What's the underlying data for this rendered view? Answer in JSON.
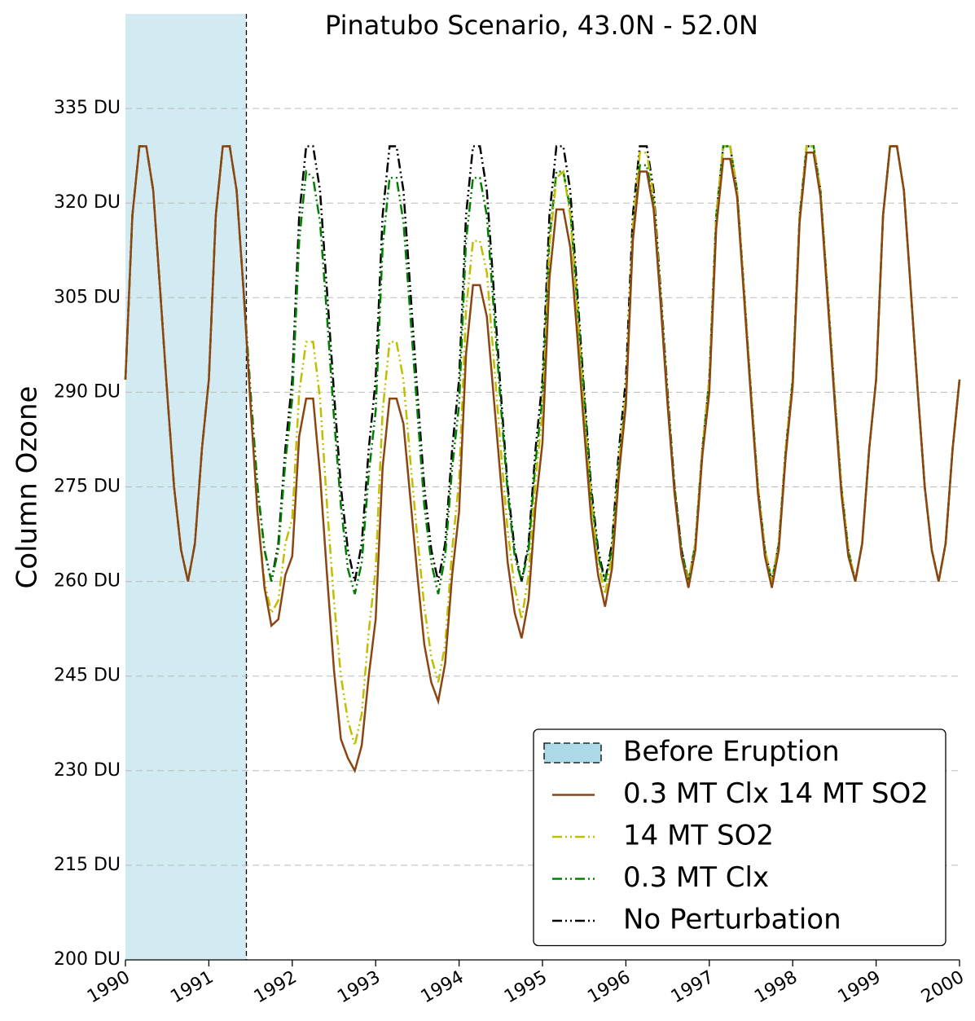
{
  "chart_data": {
    "type": "line",
    "title": "Pinatubo Scenario, 43.0N - 52.0N",
    "y_label": "Column Ozone",
    "x": [
      1990,
      1990.083,
      1990.167,
      1990.25,
      1990.333,
      1990.417,
      1990.5,
      1990.583,
      1990.667,
      1990.75,
      1990.833,
      1990.917,
      1991,
      1991.083,
      1991.167,
      1991.25,
      1991.333,
      1991.417,
      1991.5,
      1991.583,
      1991.667,
      1991.75,
      1991.833,
      1991.917,
      1992,
      1992.083,
      1992.167,
      1992.25,
      1992.333,
      1992.417,
      1992.5,
      1992.583,
      1992.667,
      1992.75,
      1992.833,
      1992.917,
      1993,
      1993.083,
      1993.167,
      1993.25,
      1993.333,
      1993.417,
      1993.5,
      1993.583,
      1993.667,
      1993.75,
      1993.833,
      1993.917,
      1994,
      1994.083,
      1994.167,
      1994.25,
      1994.333,
      1994.417,
      1994.5,
      1994.583,
      1994.667,
      1994.75,
      1994.833,
      1994.917,
      1995,
      1995.083,
      1995.167,
      1995.25,
      1995.333,
      1995.417,
      1995.5,
      1995.583,
      1995.667,
      1995.75,
      1995.833,
      1995.917,
      1996,
      1996.083,
      1996.167,
      1996.25,
      1996.333,
      1996.417,
      1996.5,
      1996.583,
      1996.667,
      1996.75,
      1996.833,
      1996.917,
      1997,
      1997.083,
      1997.167,
      1997.25,
      1997.333,
      1997.417,
      1997.5,
      1997.583,
      1997.667,
      1997.75,
      1997.833,
      1997.917,
      1998,
      1998.083,
      1998.167,
      1998.25,
      1998.333,
      1998.417,
      1998.5,
      1998.583,
      1998.667,
      1998.75,
      1998.833,
      1998.917,
      1999,
      1999.083,
      1999.167,
      1999.25,
      1999.333,
      1999.417,
      1999.5,
      1999.583,
      1999.667,
      1999.75,
      1999.833,
      1999.917,
      2000
    ],
    "series": [
      {
        "name": "0.3 MT Clx 14 MT SO2",
        "color": "#8b4513",
        "style": "solid",
        "values": [
          292,
          318,
          329,
          329,
          322,
          306,
          290,
          275,
          265,
          260,
          266,
          281,
          292,
          318,
          329,
          329,
          322,
          306,
          288,
          271,
          259,
          253,
          254,
          261,
          264,
          283,
          289,
          289,
          277,
          261,
          246,
          235,
          232,
          230,
          234,
          245,
          254,
          278,
          289,
          289,
          285,
          273,
          261,
          250,
          244,
          241,
          247,
          261,
          271,
          296,
          307,
          307,
          302,
          289,
          276,
          263,
          255,
          251,
          257,
          272,
          282,
          308,
          319,
          319,
          313,
          299,
          284,
          270,
          261,
          256,
          262,
          277,
          288,
          314,
          325,
          325,
          319,
          304,
          288,
          274,
          264,
          259,
          265,
          280,
          290,
          316,
          327,
          327,
          321,
          305,
          289,
          274,
          264,
          259,
          265,
          280,
          291,
          317,
          328,
          328,
          321,
          305,
          289,
          274,
          264,
          260,
          266,
          281,
          292,
          318,
          329,
          329,
          322,
          306,
          290,
          275,
          265,
          260,
          266,
          281,
          292
        ]
      },
      {
        "name": "14 MT SO2",
        "color": "#bfbf00",
        "style": "dashdotdot",
        "values": [
          292,
          318,
          329,
          329,
          322,
          306,
          290,
          275,
          265,
          260,
          266,
          281,
          292,
          318,
          329,
          329,
          322,
          306,
          288,
          271,
          260,
          255,
          257,
          266,
          270,
          290,
          298,
          298,
          289,
          272,
          257,
          245,
          238,
          234,
          239,
          252,
          262,
          287,
          298,
          298,
          292,
          279,
          267,
          256,
          248,
          244,
          250,
          265,
          276,
          303,
          314,
          314,
          309,
          295,
          281,
          268,
          259,
          254,
          261,
          276,
          287,
          313,
          324,
          325,
          318,
          303,
          287,
          273,
          263,
          258,
          264,
          279,
          290,
          316,
          328,
          328,
          321,
          305,
          289,
          274,
          264,
          260,
          266,
          281,
          292,
          318,
          329,
          329,
          322,
          306,
          290,
          275,
          265,
          260,
          266,
          281,
          292,
          318,
          329,
          329,
          322,
          306,
          290,
          275,
          265,
          260,
          266,
          281,
          292,
          318,
          329,
          329,
          322,
          306,
          290,
          275,
          265,
          260,
          266,
          281,
          292
        ]
      },
      {
        "name": "0.3 MT Clx",
        "color": "#008000",
        "style": "dashdotdot",
        "values": [
          292,
          318,
          329,
          329,
          322,
          306,
          290,
          275,
          265,
          260,
          266,
          281,
          292,
          318,
          329,
          329,
          322,
          306,
          290,
          275,
          265,
          260,
          265,
          279,
          289,
          314,
          325,
          324,
          317,
          302,
          286,
          272,
          262,
          258,
          263,
          277,
          287,
          313,
          324,
          324,
          317,
          302,
          287,
          272,
          263,
          258,
          264,
          278,
          288,
          314,
          324,
          324,
          318,
          303,
          288,
          274,
          264,
          260,
          265,
          279,
          289,
          314,
          325,
          325,
          319,
          304,
          289,
          274,
          264,
          260,
          265,
          279,
          289,
          315,
          326,
          326,
          320,
          305,
          289,
          275,
          265,
          260,
          266,
          281,
          292,
          318,
          329,
          329,
          322,
          306,
          290,
          275,
          265,
          260,
          266,
          281,
          292,
          318,
          329,
          329,
          322,
          306,
          290,
          275,
          265,
          260,
          266,
          281,
          292,
          318,
          329,
          329,
          322,
          306,
          290,
          275,
          265,
          260,
          266,
          281,
          292
        ]
      },
      {
        "name": "No Perturbation",
        "color": "#000000",
        "style": "dashdotdot",
        "values": [
          292,
          318,
          329,
          329,
          322,
          306,
          290,
          275,
          265,
          260,
          266,
          281,
          292,
          318,
          329,
          329,
          322,
          306,
          290,
          275,
          265,
          260,
          266,
          281,
          292,
          318,
          329,
          329,
          322,
          306,
          290,
          275,
          265,
          260,
          266,
          281,
          292,
          318,
          329,
          329,
          322,
          306,
          290,
          275,
          265,
          260,
          266,
          281,
          292,
          318,
          329,
          329,
          322,
          306,
          290,
          275,
          265,
          260,
          266,
          281,
          292,
          318,
          329,
          329,
          322,
          306,
          290,
          275,
          265,
          260,
          266,
          281,
          292,
          318,
          329,
          329,
          322,
          306,
          290,
          275,
          265,
          260,
          266,
          281,
          292,
          318,
          329,
          329,
          322,
          306,
          290,
          275,
          265,
          260,
          266,
          281,
          292,
          318,
          329,
          329,
          322,
          306,
          290,
          275,
          265,
          260,
          266,
          281,
          292,
          318,
          329,
          329,
          322,
          306,
          290,
          275,
          265,
          260,
          266,
          281,
          292
        ]
      }
    ],
    "span": {
      "name": "Before Eruption",
      "color": "#add8e6",
      "x": [
        1990,
        1991.45
      ]
    },
    "xlim": [
      1990,
      2000
    ],
    "xticks": [
      1990,
      1991,
      1992,
      1993,
      1994,
      1995,
      1996,
      1997,
      1998,
      1999,
      2000
    ],
    "ylim": [
      200,
      350
    ],
    "yticks": [
      {
        "value": 200,
        "label": "200 DU"
      },
      {
        "value": 215,
        "label": "215 DU"
      },
      {
        "value": 230,
        "label": "230 DU"
      },
      {
        "value": 245,
        "label": "245 DU"
      },
      {
        "value": 260,
        "label": "260 DU"
      },
      {
        "value": 275,
        "label": "275 DU"
      },
      {
        "value": 290,
        "label": "290 DU"
      },
      {
        "value": 305,
        "label": "305 DU"
      },
      {
        "value": 320,
        "label": "320 DU"
      },
      {
        "value": 335,
        "label": "335 DU"
      }
    ],
    "grid": true,
    "legend": "lower right"
  }
}
